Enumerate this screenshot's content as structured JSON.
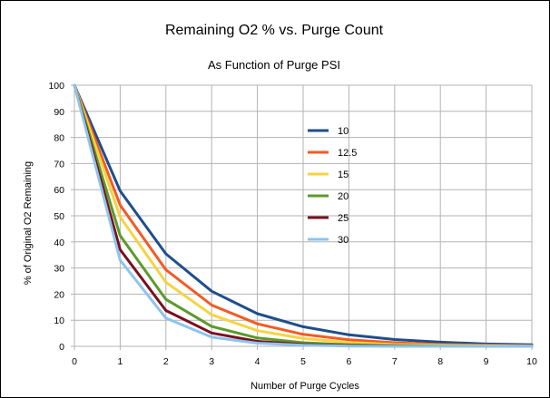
{
  "chart_data": {
    "type": "line",
    "title": "Remaining O2 % vs. Purge Count",
    "subtitle": "As Function of Purge PSI",
    "xlabel": "Number of Purge Cycles",
    "ylabel": "% of Original O2 Remaining",
    "xlim": [
      0,
      10
    ],
    "ylim": [
      0,
      100
    ],
    "xticks": [
      "0",
      "1",
      "2",
      "3",
      "4",
      "5",
      "6",
      "7",
      "8",
      "9",
      "10"
    ],
    "yticks": [
      "0",
      "10",
      "20",
      "30",
      "40",
      "50",
      "60",
      "70",
      "80",
      "90",
      "100"
    ],
    "grid": true,
    "legend_position": "inside, upper middle-right",
    "x": [
      0,
      1,
      2,
      3,
      4,
      5,
      6,
      7,
      8,
      9,
      10
    ],
    "series": [
      {
        "name": "10",
        "color": "#1f4e8c",
        "values": [
          100,
          59.5,
          35.4,
          21.1,
          12.5,
          7.5,
          4.4,
          2.6,
          1.6,
          0.9,
          0.6
        ]
      },
      {
        "name": "12.5",
        "color": "#f45a24",
        "values": [
          100,
          54.1,
          29.3,
          15.8,
          8.6,
          4.6,
          2.5,
          1.4,
          0.7,
          0.4,
          0.2
        ]
      },
      {
        "name": "15",
        "color": "#f5d440",
        "values": [
          100,
          49.5,
          24.5,
          12.1,
          6.0,
          3.0,
          1.5,
          0.7,
          0.4,
          0.2,
          0.1
        ]
      },
      {
        "name": "20",
        "color": "#5c9a2a",
        "values": [
          100,
          42.4,
          18.0,
          7.6,
          3.2,
          1.4,
          0.6,
          0.3,
          0.1,
          0.0,
          0.0
        ]
      },
      {
        "name": "25",
        "color": "#7a0f1f",
        "values": [
          100,
          37.0,
          13.7,
          5.1,
          1.9,
          0.7,
          0.3,
          0.1,
          0.0,
          0.0,
          0.0
        ]
      },
      {
        "name": "30",
        "color": "#8cc4ee",
        "values": [
          100,
          33.0,
          10.8,
          3.5,
          1.2,
          0.4,
          0.1,
          0.0,
          0.0,
          0.0,
          0.0
        ]
      }
    ]
  }
}
